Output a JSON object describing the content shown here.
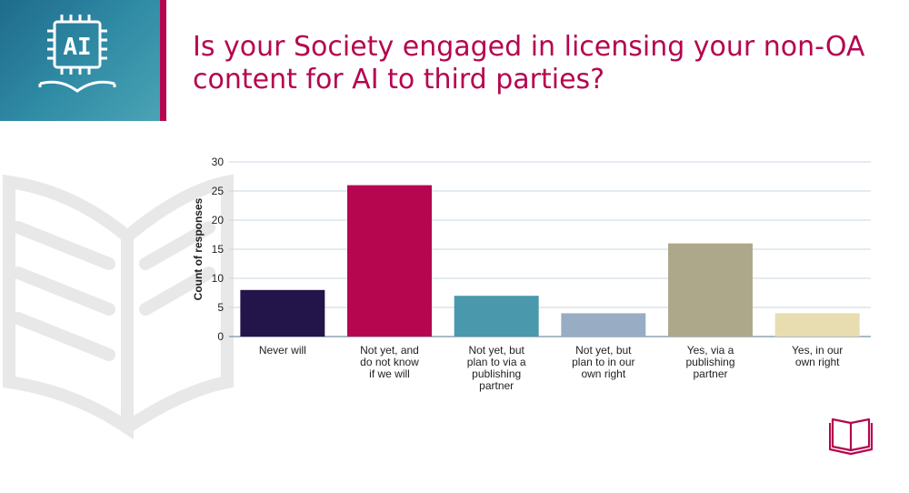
{
  "slide": {
    "title": "Is your Society engaged in licensing your non-OA content for AI to third parties?",
    "logo_text": "AI"
  },
  "colors": {
    "accent": "#b5064f",
    "panel": "#2f8aa4",
    "grid": "#c9d7e3",
    "axis": "#8fa3b3"
  },
  "icons": [
    "ai-chip-book-icon",
    "open-book-icon"
  ],
  "chart_data": {
    "type": "bar",
    "title": "",
    "xlabel": "",
    "ylabel": "Count of responses",
    "ylim": [
      0,
      30
    ],
    "yticks": [
      0,
      5,
      10,
      15,
      20,
      25,
      30
    ],
    "grid": true,
    "categories": [
      [
        "Never will"
      ],
      [
        "Not yet, and",
        "do not know",
        "if we will"
      ],
      [
        "Not yet, but",
        "plan to via a",
        "publishing",
        "partner"
      ],
      [
        "Not yet, but",
        "plan to in our",
        "own right"
      ],
      [
        "Yes, via a",
        "publishing",
        "partner"
      ],
      [
        "Yes, in our",
        "own right"
      ]
    ],
    "values": [
      8,
      26,
      7,
      4,
      16,
      4
    ],
    "bar_colors": [
      "#23154a",
      "#b5064f",
      "#4a98ac",
      "#98adc3",
      "#ada88a",
      "#e7ddb0"
    ]
  }
}
